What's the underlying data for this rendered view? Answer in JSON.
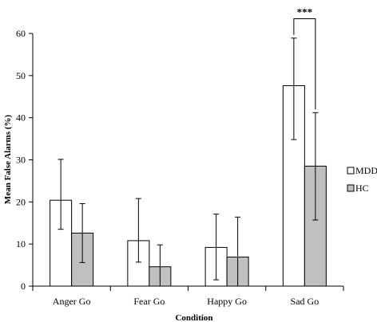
{
  "chart_data": {
    "type": "bar",
    "xlabel": "Condition",
    "ylabel": "Mean False Alarms (%)",
    "ylim": [
      0,
      60
    ],
    "yticks": [
      0,
      10,
      20,
      30,
      40,
      50,
      60
    ],
    "grid": false,
    "legend_position": "right",
    "categories": [
      "Anger Go",
      "Fear Go",
      "Happy Go",
      "Sad Go"
    ],
    "series": [
      {
        "name": "MDD",
        "color": "#ffffff",
        "values": [
          20.4,
          10.8,
          9.2,
          47.6
        ],
        "error_low": [
          13.5,
          5.7,
          1.5,
          34.8
        ],
        "error_high": [
          30.1,
          20.8,
          17.1,
          58.9
        ]
      },
      {
        "name": "HC",
        "color": "#c0c0c0",
        "values": [
          12.6,
          4.6,
          6.9,
          28.5
        ],
        "error_low": [
          5.6,
          0.0,
          0.0,
          15.7
        ],
        "error_high": [
          19.6,
          9.8,
          16.4,
          41.2
        ]
      }
    ],
    "annotations": [
      {
        "text": "***",
        "category": "Sad Go",
        "y": 63.5
      }
    ]
  }
}
